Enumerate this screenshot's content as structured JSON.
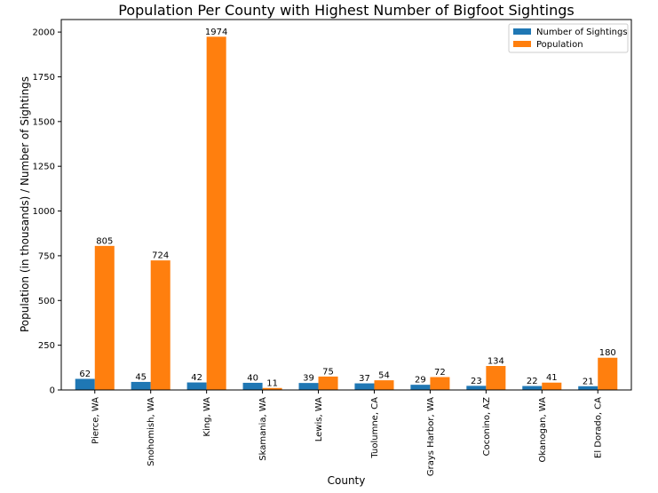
{
  "chart_data": {
    "type": "bar",
    "title": "Population Per County with Highest Number of Bigfoot Sightings",
    "xlabel": "County",
    "ylabel": "Population (in thousands) / Number of Sightings",
    "ylim": [
      0,
      2070
    ],
    "yticks": [
      0,
      250,
      500,
      750,
      1000,
      1250,
      1500,
      1750,
      2000
    ],
    "grid": false,
    "legend_position": "top-right",
    "categories": [
      "Pierce, WA",
      "Snohomish, WA",
      "King, WA",
      "Skamania, WA",
      "Lewis, WA",
      "Tuolumne, CA",
      "Grays Harbor, WA",
      "Coconino, AZ",
      "Okanogan, WA",
      "El Dorado, CA"
    ],
    "series": [
      {
        "name": "Number of Sightings",
        "color": "#1f77b4",
        "values": [
          62,
          45,
          42,
          40,
          39,
          37,
          29,
          23,
          22,
          21
        ]
      },
      {
        "name": "Population",
        "color": "#ff7f0e",
        "values": [
          805,
          724,
          1974,
          11,
          75,
          54,
          72,
          134,
          41,
          180
        ]
      }
    ]
  }
}
